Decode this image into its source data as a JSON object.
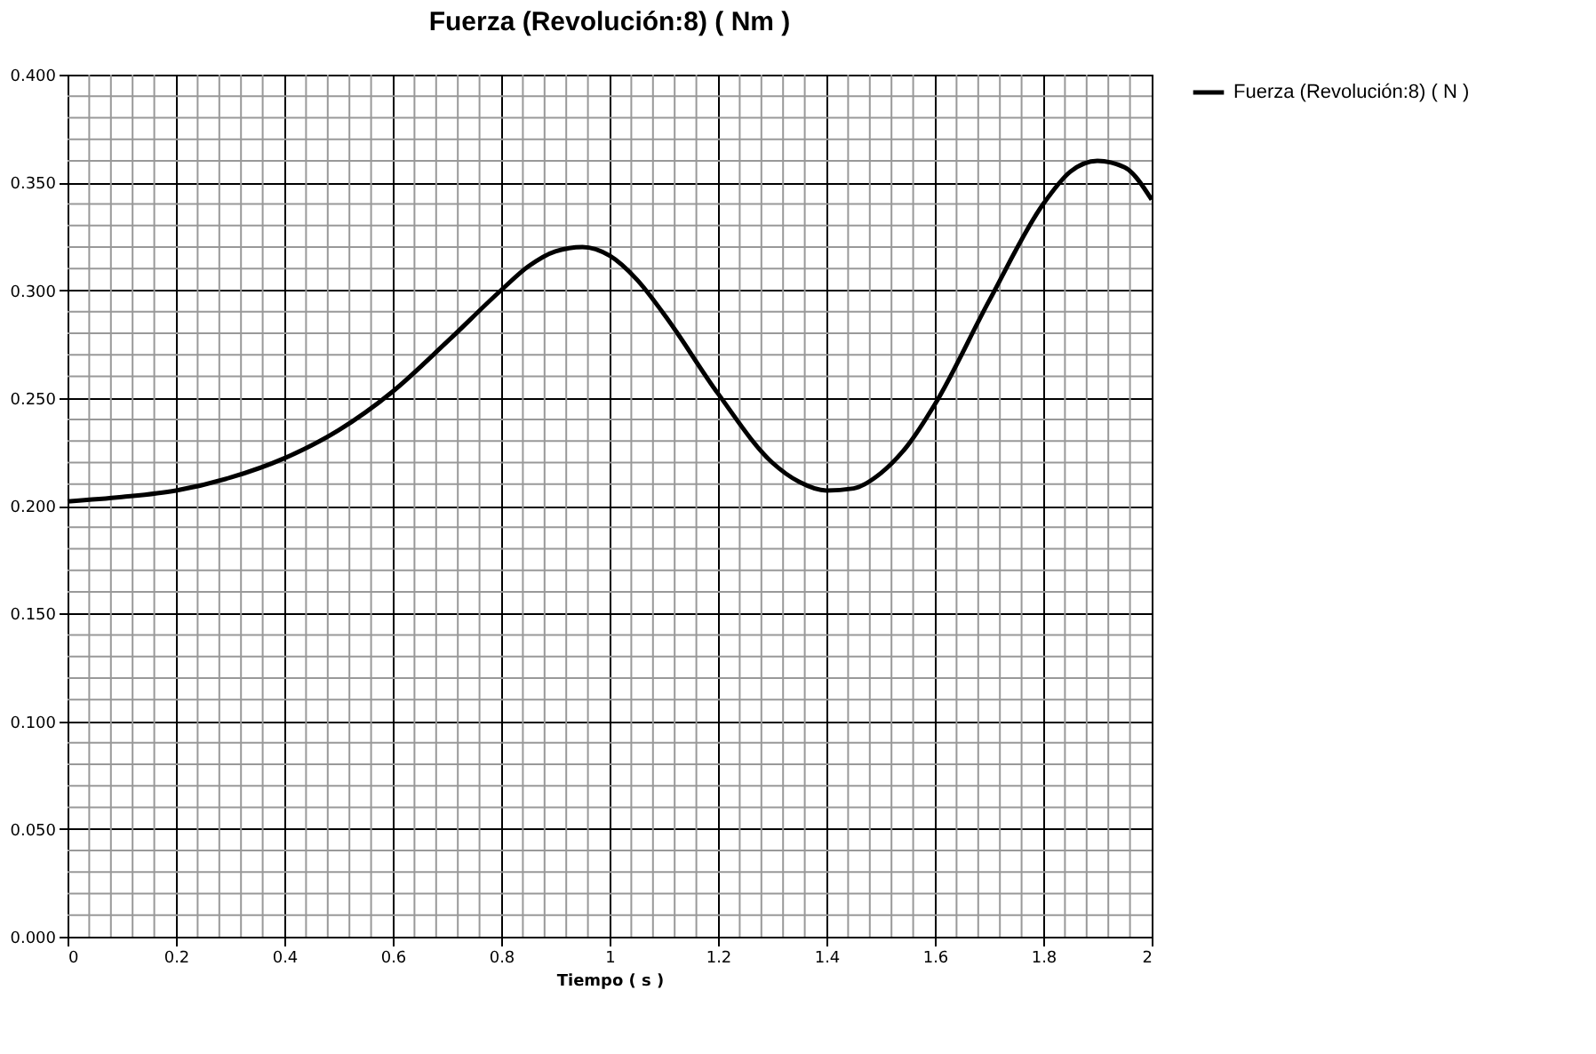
{
  "chart_data": {
    "type": "line",
    "title": "Fuerza (Revolución:8) ( Nm )",
    "xlabel": "Tiempo ( s )",
    "x": [
      0,
      0.1,
      0.2,
      0.3,
      0.4,
      0.5,
      0.6,
      0.7,
      0.8,
      0.85,
      0.9,
      0.95,
      1.0,
      1.05,
      1.1,
      1.2,
      1.3,
      1.35,
      1.4,
      1.45,
      1.5,
      1.55,
      1.6,
      1.7,
      1.8,
      1.85,
      1.9,
      1.95,
      2.0
    ],
    "series": [
      {
        "name": "Fuerza (Revolución:8) ( N )",
        "color": "#000000",
        "values": [
          0.202,
          0.204,
          0.207,
          0.213,
          0.222,
          0.235,
          0.253,
          0.276,
          0.3,
          0.311,
          0.318,
          0.32,
          0.316,
          0.305,
          0.289,
          0.252,
          0.22,
          0.211,
          0.207,
          0.208,
          0.215,
          0.228,
          0.247,
          0.295,
          0.34,
          0.355,
          0.36,
          0.357,
          0.342
        ]
      }
    ],
    "xlim": [
      0,
      2
    ],
    "xticks": [
      0,
      0.2,
      0.4,
      0.6,
      0.8,
      1,
      1.2,
      1.4,
      1.6,
      1.8,
      2
    ],
    "ylim": [
      0,
      0.4
    ],
    "yticks": [
      {
        "value": 0,
        "label": "0.000"
      },
      {
        "value": 0.05,
        "label": "0.050"
      },
      {
        "value": 0.1,
        "label": "0.100"
      },
      {
        "value": 0.15,
        "label": "0.150"
      },
      {
        "value": 0.2,
        "label": "0.200"
      },
      {
        "value": 0.25,
        "label": "0.250"
      },
      {
        "value": 0.3,
        "label": "0.300"
      },
      {
        "value": 0.35,
        "label": "0.350"
      },
      {
        "value": 0.4,
        "label": "0.400"
      }
    ],
    "grid": true,
    "legend": "right",
    "line_style": "solid"
  }
}
